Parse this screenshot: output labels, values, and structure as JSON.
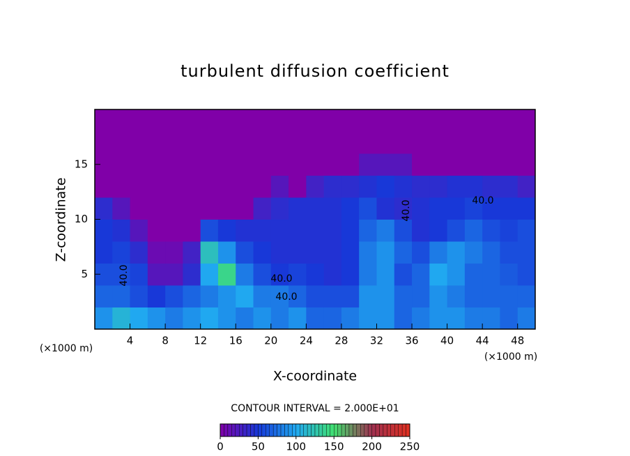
{
  "chart_data": {
    "type": "heatmap",
    "title": "turbulent diffusion coefficient",
    "x_label": "X-coordinate",
    "y_label": "Z-coordinate",
    "x_unit_left": "(×1000 m)",
    "x_unit_right": "(×1000 m)",
    "contour_interval": "CONTOUR INTERVAL = 2.000E+01",
    "annotations": [
      "40.0",
      "40.0",
      "40.0",
      "40.0",
      "40.0"
    ],
    "xlim": [
      0,
      50
    ],
    "ylim": [
      0,
      20
    ],
    "xticks": [
      4,
      8,
      12,
      16,
      20,
      24,
      28,
      32,
      36,
      40,
      44,
      48
    ],
    "yticks": [
      5,
      10,
      15
    ],
    "x": [
      1,
      3,
      5,
      7,
      9,
      11,
      13,
      15,
      17,
      19,
      21,
      23,
      25,
      27,
      29,
      31,
      33,
      35,
      37,
      39,
      41,
      43,
      45,
      47,
      49
    ],
    "y": [
      1,
      3,
      5,
      7,
      9,
      11,
      13,
      15,
      17,
      19
    ],
    "values": [
      [
        90,
        110,
        100,
        90,
        80,
        90,
        100,
        90,
        80,
        90,
        80,
        90,
        70,
        70,
        80,
        90,
        90,
        70,
        80,
        90,
        90,
        80,
        80,
        70,
        80
      ],
      [
        70,
        70,
        60,
        50,
        60,
        70,
        80,
        90,
        100,
        80,
        80,
        70,
        60,
        60,
        60,
        90,
        90,
        70,
        70,
        90,
        80,
        70,
        70,
        70,
        70
      ],
      [
        60,
        60,
        55,
        20,
        20,
        40,
        100,
        140,
        80,
        60,
        50,
        55,
        50,
        45,
        50,
        80,
        90,
        60,
        70,
        100,
        90,
        70,
        70,
        65,
        60
      ],
      [
        50,
        55,
        40,
        10,
        10,
        30,
        120,
        90,
        60,
        50,
        45,
        45,
        45,
        45,
        50,
        80,
        90,
        70,
        60,
        80,
        90,
        80,
        70,
        60,
        60
      ],
      [
        50,
        45,
        20,
        0,
        0,
        0,
        60,
        50,
        45,
        45,
        45,
        45,
        45,
        45,
        50,
        70,
        80,
        60,
        45,
        50,
        60,
        70,
        60,
        55,
        60
      ],
      [
        40,
        20,
        0,
        0,
        0,
        0,
        0,
        0,
        0,
        30,
        40,
        45,
        45,
        45,
        50,
        60,
        45,
        40,
        45,
        50,
        50,
        55,
        50,
        50,
        50
      ],
      [
        0,
        0,
        0,
        0,
        0,
        0,
        0,
        0,
        0,
        0,
        20,
        0,
        30,
        40,
        40,
        45,
        50,
        45,
        40,
        40,
        45,
        45,
        40,
        40,
        30
      ],
      [
        0,
        0,
        0,
        0,
        0,
        0,
        0,
        0,
        0,
        0,
        0,
        0,
        0,
        0,
        0,
        20,
        20,
        20,
        0,
        0,
        0,
        0,
        0,
        0,
        0
      ],
      [
        0,
        0,
        0,
        0,
        0,
        0,
        0,
        0,
        0,
        0,
        0,
        0,
        0,
        0,
        0,
        0,
        0,
        0,
        0,
        0,
        0,
        0,
        0,
        0,
        0
      ],
      [
        0,
        0,
        0,
        0,
        0,
        0,
        0,
        0,
        0,
        0,
        0,
        0,
        0,
        0,
        0,
        0,
        0,
        0,
        0,
        0,
        0,
        0,
        0,
        0,
        0
      ]
    ],
    "colorbar": {
      "lim": [
        0,
        250
      ],
      "ticks": [
        0,
        50,
        100,
        150,
        200,
        250
      ],
      "colors": [
        "#8000a8",
        "#1838d8",
        "#20a8f0",
        "#40e070",
        "#a03050",
        "#e03020"
      ]
    }
  }
}
